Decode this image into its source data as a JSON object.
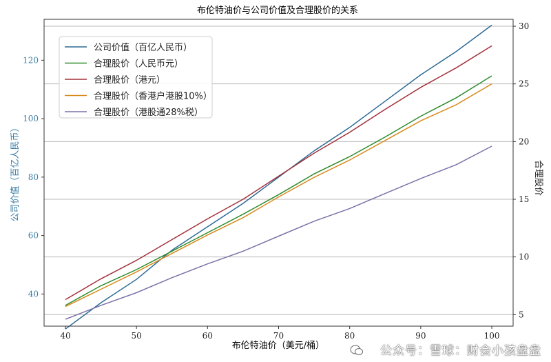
{
  "chart_data": {
    "type": "line",
    "title": "布伦特油价与公司价值及合理股价的关系",
    "xlabel": "布伦特油价（美元/桶）",
    "ylabel_left": "公司价值（百亿人民币）",
    "ylabel_right": "合理股价",
    "x": [
      40,
      45,
      50,
      55,
      60,
      65,
      70,
      75,
      80,
      85,
      90,
      95,
      100
    ],
    "xlim": [
      37,
      103
    ],
    "xticks": [
      40,
      50,
      60,
      70,
      80,
      90,
      100
    ],
    "ylim_left": [
      29,
      134
    ],
    "yticks_left": [
      40,
      60,
      80,
      100,
      120
    ],
    "ylim_right": [
      4.0,
      30.6
    ],
    "yticks_right": [
      5,
      10,
      15,
      20,
      25,
      30
    ],
    "grid": "horizontal lines at right-axis ticks",
    "legend_position": "upper-left",
    "series": [
      {
        "name": "公司价值（百亿人民币）",
        "axis": "left",
        "color": "#2c6a94",
        "values": [
          28,
          37,
          45,
          55,
          63,
          71,
          80,
          89,
          97,
          106,
          115,
          123,
          132
        ]
      },
      {
        "name": "合理股价（人民币元）",
        "axis": "right",
        "color": "#2e8b2e",
        "values": [
          5.8,
          7.5,
          8.9,
          10.5,
          12.1,
          13.7,
          15.4,
          17.2,
          18.7,
          20.4,
          22.2,
          23.8,
          25.7
        ]
      },
      {
        "name": "合理股价（港元）",
        "axis": "right",
        "color": "#a3303a",
        "values": [
          6.3,
          8.1,
          9.7,
          11.5,
          13.3,
          15.0,
          17.0,
          19.0,
          20.8,
          22.8,
          24.7,
          26.4,
          28.3
        ]
      },
      {
        "name": "合理股价（香港户港股10%）",
        "axis": "right",
        "color": "#d98a1e",
        "values": [
          5.7,
          7.2,
          8.7,
          10.3,
          11.9,
          13.4,
          15.2,
          16.9,
          18.4,
          20.1,
          21.8,
          23.2,
          25.0
        ]
      },
      {
        "name": "合理股价（港股通28%税）",
        "axis": "right",
        "color": "#7b72a8",
        "values": [
          4.6,
          5.8,
          6.9,
          8.2,
          9.4,
          10.5,
          11.8,
          13.1,
          14.2,
          15.5,
          16.8,
          18.0,
          19.6
        ]
      }
    ]
  },
  "watermark": "公众号：雪球：财会小孩盘盘"
}
